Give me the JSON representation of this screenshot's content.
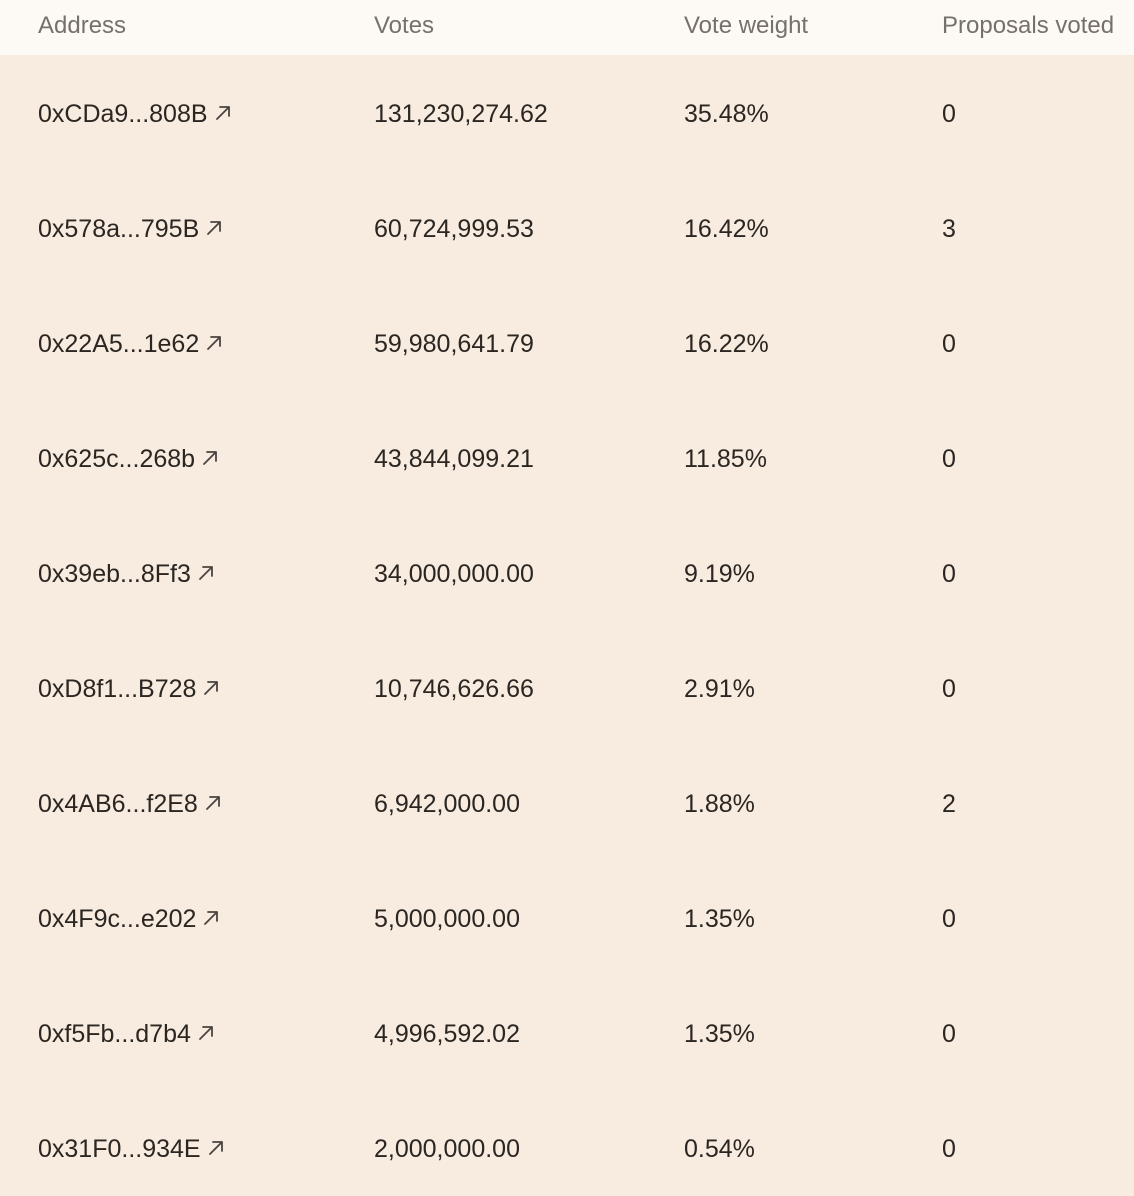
{
  "columns": {
    "address": "Address",
    "votes": "Votes",
    "vote_weight": "Vote weight",
    "proposals_voted": "Proposals voted"
  },
  "icons": {
    "external_link": "external-link-arrow-icon"
  },
  "colors": {
    "background": "#f7ecdf",
    "header_background": "#fdf9f4",
    "header_text": "#77706a",
    "body_text": "#2b2622"
  },
  "rows": [
    {
      "address": "0xCDa9...808B",
      "votes": "131,230,274.62",
      "weight": "35.48%",
      "proposals": "0"
    },
    {
      "address": "0x578a...795B",
      "votes": "60,724,999.53",
      "weight": "16.42%",
      "proposals": "3"
    },
    {
      "address": "0x22A5...1e62",
      "votes": "59,980,641.79",
      "weight": "16.22%",
      "proposals": "0"
    },
    {
      "address": "0x625c...268b",
      "votes": "43,844,099.21",
      "weight": "11.85%",
      "proposals": "0"
    },
    {
      "address": "0x39eb...8Ff3",
      "votes": "34,000,000.00",
      "weight": "9.19%",
      "proposals": "0"
    },
    {
      "address": "0xD8f1...B728",
      "votes": "10,746,626.66",
      "weight": "2.91%",
      "proposals": "0"
    },
    {
      "address": "0x4AB6...f2E8",
      "votes": "6,942,000.00",
      "weight": "1.88%",
      "proposals": "2"
    },
    {
      "address": "0x4F9c...e202",
      "votes": "5,000,000.00",
      "weight": "1.35%",
      "proposals": "0"
    },
    {
      "address": "0xf5Fb...d7b4",
      "votes": "4,996,592.02",
      "weight": "1.35%",
      "proposals": "0"
    },
    {
      "address": "0x31F0...934E",
      "votes": "2,000,000.00",
      "weight": "0.54%",
      "proposals": "0"
    }
  ]
}
